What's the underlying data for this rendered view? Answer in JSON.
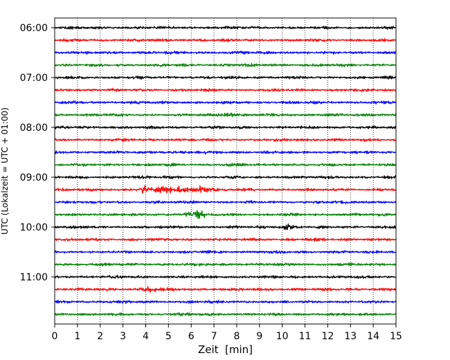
{
  "chart_data": {
    "type": "line",
    "title": "",
    "xlabel": "Zeit  [min]",
    "ylabel": "UTC (Lokalzeit = UTC + 01:00)",
    "xlim": [
      0,
      15
    ],
    "x_ticks": [
      0,
      1,
      2,
      3,
      4,
      5,
      6,
      7,
      8,
      9,
      10,
      11,
      12,
      13,
      14,
      15
    ],
    "y_tick_labels": [
      "06:00",
      "07:00",
      "08:00",
      "09:00",
      "10:00",
      "11:00"
    ],
    "grid": "vertical dotted lines at each minute",
    "trace_interval_min": 15,
    "first_trace": "06:00",
    "trace_count": 24,
    "trace_colors": [
      "#000000",
      "#ff0000",
      "#0000ff",
      "#008000"
    ],
    "trace_note": "one trace per 15 minutes, colors cycle black, red, blue, green; larger bursts visible near 09:15 (x≈3.8–6.6) and 09:45 (x≈6.1)"
  }
}
